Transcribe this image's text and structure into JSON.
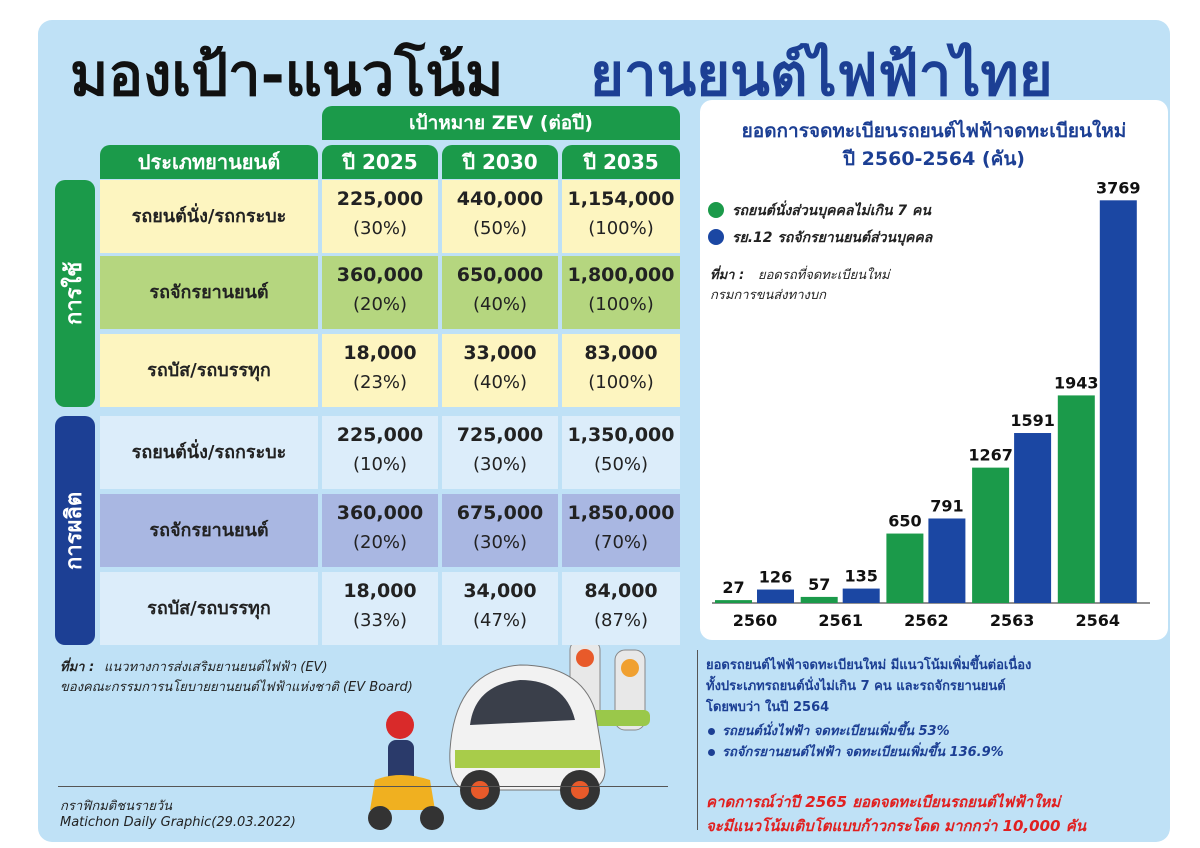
{
  "title": {
    "part1": "มองเป้า-แนวโน้ม",
    "part2": "ยานยนต์ไฟฟ้าไทย"
  },
  "table": {
    "group_header": "เป้าหมาย ZEV (ต่อปี)",
    "columns": [
      "ประเภทยานยนต์",
      "ปี 2025",
      "ปี 2030",
      "ปี 2035"
    ],
    "groups": [
      {
        "label": "การใช้",
        "rows": [
          {
            "type": "รถยนต์นั่ง/รถกระบะ",
            "cells": [
              [
                "225,000",
                "(30%)"
              ],
              [
                "440,000",
                "(50%)"
              ],
              [
                "1,154,000",
                "(100%)"
              ]
            ]
          },
          {
            "type": "รถจักรยานยนต์",
            "cells": [
              [
                "360,000",
                "(20%)"
              ],
              [
                "650,000",
                "(40%)"
              ],
              [
                "1,800,000",
                "(100%)"
              ]
            ]
          },
          {
            "type": "รถบัส/รถบรรทุก",
            "cells": [
              [
                "18,000",
                "(23%)"
              ],
              [
                "33,000",
                "(40%)"
              ],
              [
                "83,000",
                "(100%)"
              ]
            ]
          }
        ]
      },
      {
        "label": "การผลิต",
        "rows": [
          {
            "type": "รถยนต์นั่ง/รถกระบะ",
            "cells": [
              [
                "225,000",
                "(10%)"
              ],
              [
                "725,000",
                "(30%)"
              ],
              [
                "1,350,000",
                "(50%)"
              ]
            ]
          },
          {
            "type": "รถจักรยานยนต์",
            "cells": [
              [
                "360,000",
                "(20%)"
              ],
              [
                "675,000",
                "(30%)"
              ],
              [
                "1,850,000",
                "(70%)"
              ]
            ]
          },
          {
            "type": "รถบัส/รถบรรทุก",
            "cells": [
              [
                "18,000",
                "(33%)"
              ],
              [
                "34,000",
                "(47%)"
              ],
              [
                "84,000",
                "(87%)"
              ]
            ]
          }
        ]
      }
    ]
  },
  "table_source": {
    "label": "ที่มา :",
    "lines": [
      "แนวทางการส่งเสริมยานยนต์ไฟฟ้า (EV)",
      "ของคณะกรรมการนโยบายยานยนต์ไฟฟ้าแห่งชาติ (EV Board)"
    ]
  },
  "credit": [
    "กราฟิกมติชนรายวัน",
    "Matichon Daily Graphic(29.03.2022)"
  ],
  "chart_data": {
    "type": "bar",
    "title": [
      "ยอดการจดทะเบียนรถยนต์ไฟฟ้าจดทะเบียนใหม่",
      "ปี 2560-2564 (คัน)"
    ],
    "categories": [
      "2560",
      "2561",
      "2562",
      "2563",
      "2564"
    ],
    "series": [
      {
        "name": "รถยนต์นั่งส่วนบุคคลไม่เกิน 7 คน",
        "color": "#1b9a4a",
        "values": [
          27,
          57,
          650,
          1267,
          1943
        ]
      },
      {
        "name": "รย.12 รถจักรยานยนต์ส่วนบุคคล",
        "color": "#1b47a3",
        "values": [
          126,
          135,
          791,
          1591,
          3769
        ]
      }
    ],
    "ylim": [
      0,
      3800
    ],
    "source": {
      "label": "ที่มา :",
      "lines": [
        "ยอดรถที่จดทะเบียนใหม่",
        "กรมการขนส่งทางบก"
      ]
    }
  },
  "summary": {
    "lines": [
      "ยอดรถยนต์ไฟฟ้าจดทะเบียนใหม่ มีแนวโน้มเพิ่มขึ้นต่อเนื่อง",
      "ทั้งประเภทรถยนต์นั่งไม่เกิน 7 คน และรถจักรยานยนต์",
      "โดยพบว่า ในปี 2564"
    ],
    "bullets": [
      "รถยนต์นั่งไฟฟ้า จดทะเบียนเพิ่มขึ้น 53%",
      "รถจักรยานยนต์ไฟฟ้า จดทะเบียนเพิ่มขึ้น 136.9%"
    ]
  },
  "forecast": [
    "คาดการณ์ว่าปี 2565 ยอดจดทะเบียนรถยนต์ไฟฟ้าใหม่",
    "จะมีแนวโน้มเติบโตแบบก้าวกระโดด มากกว่า 10,000 คัน"
  ]
}
